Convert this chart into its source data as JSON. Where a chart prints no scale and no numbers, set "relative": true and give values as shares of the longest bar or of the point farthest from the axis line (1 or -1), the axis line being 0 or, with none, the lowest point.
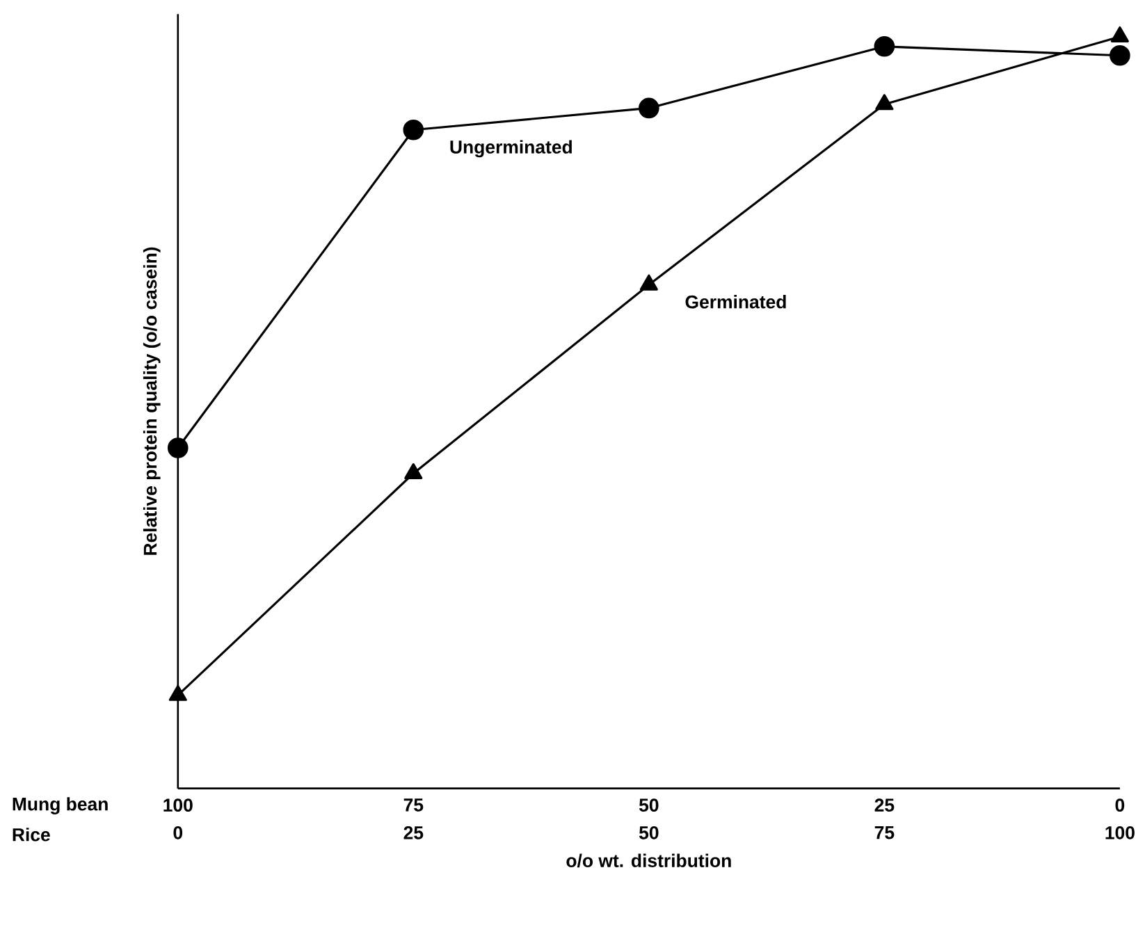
{
  "chart_data": {
    "type": "line",
    "relative": true,
    "xlabel": "o/o wt. distribution",
    "ylabel": "Relative protein quality (o/o casein)",
    "x": [
      100,
      75,
      50,
      25,
      0
    ],
    "xlim": [
      100,
      0
    ],
    "xticks": [
      100,
      75,
      50,
      25,
      0
    ],
    "x2lim": [
      0,
      100
    ],
    "x2ticks": [
      0,
      25,
      50,
      75,
      100
    ],
    "series": [
      {
        "name": "Ungerminated",
        "color": "#000000",
        "marker": "circle",
        "values": [
          0.453,
          0.876,
          0.905,
          0.987,
          0.975
        ]
      },
      {
        "name": "Germinated",
        "color": "#000000",
        "marker": "triangle",
        "values": [
          0.124,
          0.419,
          0.67,
          0.91,
          1.0
        ]
      }
    ],
    "annotations": [
      "Mung bean",
      "Rice"
    ],
    "line_style": "solid",
    "grid": false,
    "legend": false
  }
}
